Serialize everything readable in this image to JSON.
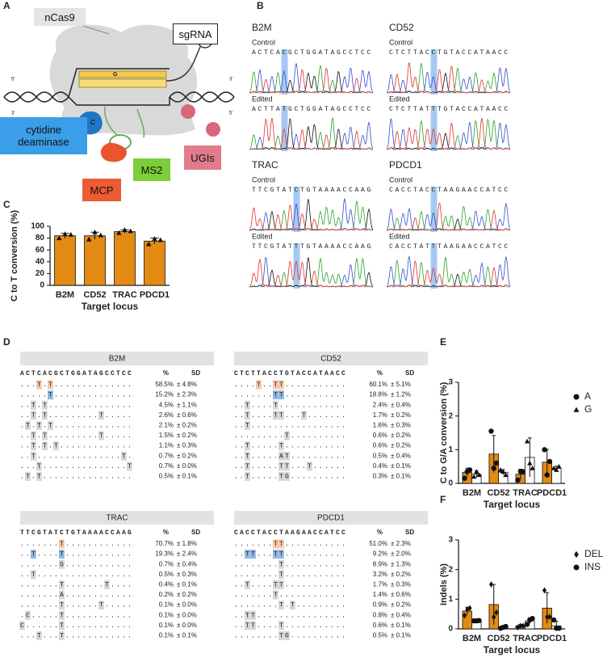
{
  "panels": [
    "A",
    "B",
    "C",
    "D",
    "E",
    "F"
  ],
  "diagram": {
    "protein": "nCas9",
    "guide": "sgRNA",
    "deaminase": "cytidine deaminase",
    "aptamer": "MS2",
    "inhibitor": "UGIs",
    "coat_protein": "MCP",
    "target_base": "C",
    "paired_base": "G",
    "strand_ends": [
      "5'",
      "3'",
      "3'",
      "5'"
    ]
  },
  "chromatograms": [
    {
      "gene": "B2M",
      "control_label": "Control",
      "control": "ACTCACGCTGGATAGCCTCC",
      "edited_label": "Edited",
      "edited": "ACTTATGCTGGATAGCCTCC"
    },
    {
      "gene": "CD52",
      "control_label": "Control",
      "control": "CTCTTACCTGTACCATAACC",
      "edited_label": "Edited",
      "edited": "CTCTTATTTGTACCATAACC"
    },
    {
      "gene": "TRAC",
      "control_label": "Control",
      "control": "TTCGTATCTGTAAAACCAAG",
      "edited_label": "Edited",
      "edited": "TTCGTATTTGTAAAACCAAG"
    },
    {
      "gene": "PDCD1",
      "control_label": "Control",
      "control": "CACCTACCTAAGAACCATCC",
      "edited_label": "Edited",
      "edited": "CACCTATTTAAGAACCATCC"
    }
  ],
  "chart_data": [
    {
      "type": "bar",
      "xlabel": "Target locus",
      "ylabel": "C to T conversion (%)",
      "categories": [
        "B2M",
        "CD52",
        "TRAC",
        "PDCD1"
      ],
      "series": [
        {
          "color": "#e38a12",
          "marker": "triangle",
          "values": [
            84,
            84,
            91,
            75
          ],
          "errors": [
            4,
            6,
            3,
            5
          ],
          "points": [
            [
              80,
              87,
              86
            ],
            [
              78,
              90,
              85
            ],
            [
              89,
              94,
              92
            ],
            [
              70,
              79,
              77
            ]
          ]
        }
      ],
      "ylim": [
        0,
        100
      ],
      "yticks": [
        0,
        20,
        40,
        60,
        80,
        100
      ]
    },
    {
      "type": "bar",
      "xlabel": "Target locus",
      "ylabel": "C to G/A conversion (%)",
      "categories": [
        "B2M",
        "CD52",
        "TRAC",
        "PDCD1"
      ],
      "series": [
        {
          "name": "A",
          "color": "#e38a12",
          "marker": "circle",
          "values": [
            0.33,
            0.87,
            0.27,
            0.63
          ],
          "errors": [
            0.12,
            0.55,
            0.15,
            0.38
          ],
          "points": [
            [
              0.15,
              0.35,
              0.4
            ],
            [
              1.55,
              0.45,
              0.6
            ],
            [
              0.1,
              0.35,
              0.35
            ],
            [
              1.0,
              0.25,
              0.65
            ]
          ]
        },
        {
          "name": "G",
          "color": "#ffffff",
          "marker": "triangle",
          "values": [
            0.27,
            0.33,
            0.77,
            0.45
          ],
          "errors": [
            0.1,
            0.08,
            0.58,
            0.06
          ],
          "points": [
            [
              0.2,
              0.35,
              0.25
            ],
            [
              0.4,
              0.35,
              0.25
            ],
            [
              1.25,
              0.6,
              0.45
            ],
            [
              0.45,
              0.4,
              0.5
            ]
          ]
        }
      ],
      "ylim": [
        0,
        3
      ],
      "yticks": [
        0,
        1,
        2,
        3
      ],
      "legend": "right"
    },
    {
      "type": "bar",
      "xlabel": "Target locus",
      "ylabel": "Indels (%)",
      "categories": [
        "B2M",
        "CD52",
        "TRAC",
        "PDCD1"
      ],
      "series": [
        {
          "name": "DEL",
          "color": "#e38a12",
          "marker": "diamond",
          "values": [
            0.6,
            0.82,
            0.1,
            0.7
          ],
          "errors": [
            0.13,
            0.68,
            0.05,
            0.52
          ],
          "points": [
            [
              0.45,
              0.65,
              0.7
            ],
            [
              1.5,
              0.4,
              0.55
            ],
            [
              0.05,
              0.1,
              0.1
            ],
            [
              1.3,
              0.4,
              0.4
            ]
          ]
        },
        {
          "name": "INS",
          "color": "#ffffff",
          "marker": "circle",
          "values": [
            0.27,
            0.05,
            0.27,
            0.1
          ],
          "errors": [
            0.01,
            0.03,
            0.1,
            0.16
          ],
          "points": [
            [
              0.27,
              0.27,
              0.28
            ],
            [
              0.02,
              0.05,
              0.08
            ],
            [
              0.15,
              0.3,
              0.35
            ],
            [
              0.3,
              0.02,
              0.02
            ]
          ]
        }
      ],
      "ylim": [
        0,
        3
      ],
      "yticks": [
        0,
        1,
        2,
        3
      ],
      "legend": "right"
    }
  ],
  "sequence_tables": [
    {
      "title": "B2M",
      "reference": "ACTCACGCTGGATAGCCTCC",
      "header": [
        "%",
        "SD"
      ],
      "rows": [
        {
          "pattern": "...T.T..............",
          "percent": "58.5%",
          "sd": "± 4.8%"
        },
        {
          "pattern": ".....T..............",
          "percent": "15.2%",
          "sd": "± 2.3%"
        },
        {
          "pattern": "..T.T...............",
          "percent": "4.5%",
          "sd": "± 1.1%"
        },
        {
          "pattern": "..T.T.........T.....",
          "percent": "2.6%",
          "sd": "± 0.6%"
        },
        {
          "pattern": ".T.T.T..............",
          "percent": "2.1%",
          "sd": "± 0.2%"
        },
        {
          "pattern": "..T.T.........T.....",
          "percent": "1.5%",
          "sd": "± 0.2%"
        },
        {
          "pattern": "..T.T.T.............",
          "percent": "1.1%",
          "sd": "± 0.3%"
        },
        {
          "pattern": "..T...............T.",
          "percent": "0.7%",
          "sd": "± 0.2%"
        },
        {
          "pattern": "...T...............T",
          "percent": "0.7%",
          "sd": "± 0.0%"
        },
        {
          "pattern": ".T.T................",
          "percent": "0.5%",
          "sd": "± 0.1%"
        }
      ]
    },
    {
      "title": "CD52",
      "reference": "CTCTTACCTGTACCATAACC",
      "header": [
        "%",
        "SD"
      ],
      "rows": [
        {
          "pattern": "....T..TT...........",
          "percent": "60.1%",
          "sd": "± 5.1%"
        },
        {
          "pattern": ".......TT...........",
          "percent": "18.8%",
          "sd": "± 1.2%"
        },
        {
          "pattern": "..T....T............",
          "percent": "2.4%",
          "sd": "± 0.4%"
        },
        {
          "pattern": "..T....TT...T.......",
          "percent": "1.7%",
          "sd": "± 0.2%"
        },
        {
          "pattern": "..T.................",
          "percent": "1.6%",
          "sd": "± 0.3%"
        },
        {
          "pattern": ".........T..........",
          "percent": "0.6%",
          "sd": "± 0.2%"
        },
        {
          "pattern": "..T.....T...........",
          "percent": "0.6%",
          "sd": "± 0.2%"
        },
        {
          "pattern": "..T.....AT..........",
          "percent": "0.5%",
          "sd": "± 0.4%"
        },
        {
          "pattern": "..T.....TT...T......",
          "percent": "0.4%",
          "sd": "± 0.1%"
        },
        {
          "pattern": "..T.....TG..........",
          "percent": "0.3%",
          "sd": "± 0.1%"
        }
      ]
    },
    {
      "title": "TRAC",
      "reference": "TTCGTATCTGTAAAACCAAG",
      "header": [
        "%",
        "SD"
      ],
      "rows": [
        {
          "pattern": ".......T............",
          "percent": "70.7%",
          "sd": "± 1.8%"
        },
        {
          "pattern": "..T....T............",
          "percent": "19.3%",
          "sd": "± 2.4%"
        },
        {
          "pattern": ".......G............",
          "percent": "0.7%",
          "sd": "± 0.4%"
        },
        {
          "pattern": "..T.................",
          "percent": "0.5%",
          "sd": "± 0.3%"
        },
        {
          "pattern": ".......T.......T....",
          "percent": "0.4%",
          "sd": "± 0.1%"
        },
        {
          "pattern": ".......A............",
          "percent": "0.2%",
          "sd": "± 0.2%"
        },
        {
          "pattern": ".......T......T.....",
          "percent": "0.1%",
          "sd": "± 0.0%"
        },
        {
          "pattern": ".C.....T............",
          "percent": "0.1%",
          "sd": "± 0.0%"
        },
        {
          "pattern": "C......T............",
          "percent": "0.1%",
          "sd": "± 0.0%"
        },
        {
          "pattern": "...T...T............",
          "percent": "0.1%",
          "sd": "± 0.1%"
        }
      ]
    },
    {
      "title": "PDCD1",
      "reference": "CACCTACCTAAGAACCATCC",
      "header": [
        "%",
        "SD"
      ],
      "rows": [
        {
          "pattern": ".......TT...........",
          "percent": "51.0%",
          "sd": "± 2.3%"
        },
        {
          "pattern": "..TT...TT...........",
          "percent": "9.2%",
          "sd": "± 2.0%"
        },
        {
          "pattern": "........T...........",
          "percent": "8.9%",
          "sd": "± 1.3%"
        },
        {
          "pattern": "........T...........",
          "percent": "3.2%",
          "sd": "± 0.2%"
        },
        {
          "pattern": "..T....TT...........",
          "percent": "1.7%",
          "sd": "± 0.3%"
        },
        {
          "pattern": ".......T............",
          "percent": "1.4%",
          "sd": "± 0.6%"
        },
        {
          "pattern": "........T.T.........",
          "percent": "0.9%",
          "sd": "± 0.2%"
        },
        {
          "pattern": "..TT................",
          "percent": "0.8%",
          "sd": "± 0.4%"
        },
        {
          "pattern": "..TT....T...........",
          "percent": "0.6%",
          "sd": "± 0.1%"
        },
        {
          "pattern": "........TG..........",
          "percent": "0.5%",
          "sd": "± 0.1%"
        }
      ]
    }
  ]
}
